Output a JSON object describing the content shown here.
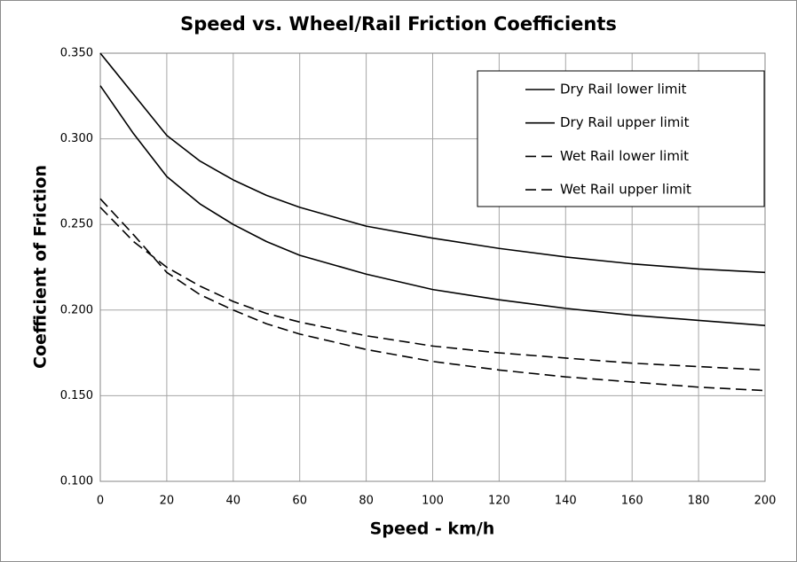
{
  "chart_data": {
    "type": "line",
    "title": "Speed vs. Wheel/Rail Friction Coefficients",
    "x_label": "Speed  - km/h",
    "y_label": "Coefficient of Friction",
    "x": [
      0,
      10,
      20,
      30,
      40,
      50,
      60,
      80,
      100,
      120,
      140,
      160,
      180,
      200
    ],
    "series": [
      {
        "name": "Dry Rail lower limit",
        "color": "#000000",
        "style": "solid",
        "values": [
          0.331,
          0.303,
          0.278,
          0.262,
          0.25,
          0.24,
          0.232,
          0.221,
          0.212,
          0.206,
          0.201,
          0.197,
          0.194,
          0.191
        ]
      },
      {
        "name": "Dry Rail upper limit",
        "color": "#000000",
        "style": "solid",
        "values": [
          0.35,
          0.326,
          0.302,
          0.287,
          0.276,
          0.267,
          0.26,
          0.249,
          0.242,
          0.236,
          0.231,
          0.227,
          0.224,
          0.222
        ]
      },
      {
        "name": "Wet Rail lower limit",
        "color": "#000000",
        "style": "dashed",
        "values": [
          0.265,
          0.244,
          0.222,
          0.209,
          0.2,
          0.192,
          0.186,
          0.177,
          0.17,
          0.165,
          0.161,
          0.158,
          0.155,
          0.153
        ]
      },
      {
        "name": "Wet Rail upper limit",
        "color": "#000000",
        "style": "dashed",
        "values": [
          0.26,
          0.24,
          0.225,
          0.214,
          0.205,
          0.198,
          0.193,
          0.185,
          0.179,
          0.175,
          0.172,
          0.169,
          0.167,
          0.165
        ]
      }
    ],
    "xlim": [
      0,
      200
    ],
    "xticks": [
      0,
      20,
      40,
      60,
      80,
      100,
      120,
      140,
      160,
      180,
      200
    ],
    "ylim": [
      0.1,
      0.35
    ],
    "yticks": [
      {
        "value": 0.1,
        "label": "0.100"
      },
      {
        "value": 0.15,
        "label": "0.150"
      },
      {
        "value": 0.2,
        "label": "0.200"
      },
      {
        "value": 0.25,
        "label": "0.250"
      },
      {
        "value": 0.3,
        "label": "0.300"
      },
      {
        "value": 0.35,
        "label": "0.350"
      }
    ],
    "grid": true,
    "legend": "upper right"
  }
}
